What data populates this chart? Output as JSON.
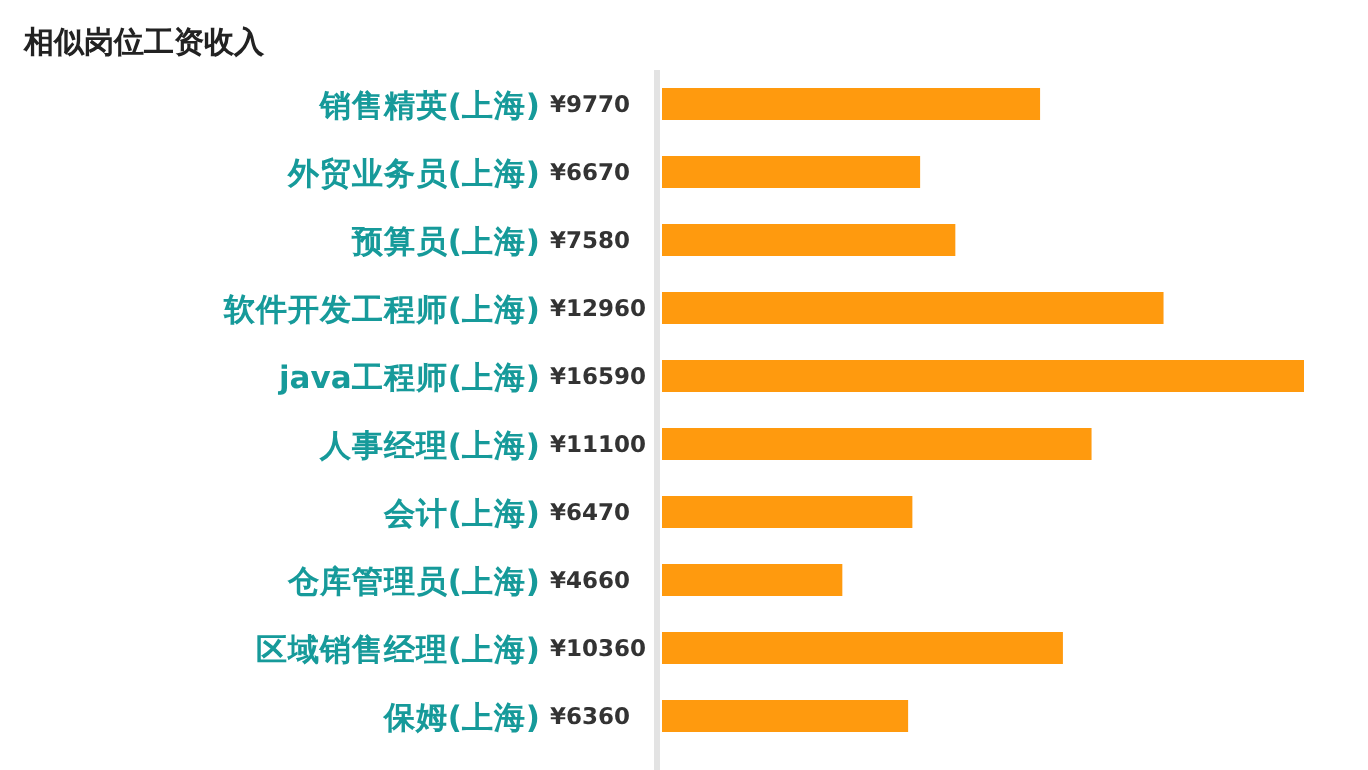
{
  "chart_data": {
    "type": "bar",
    "orientation": "horizontal",
    "title": "相似岗位工资收入",
    "categories": [
      "销售精英(上海)",
      "外贸业务员(上海)",
      "预算员(上海)",
      "软件开发工程师(上海)",
      "java工程师(上海)",
      "人事经理(上海)",
      "会计(上海)",
      "仓库管理员(上海)",
      "区域销售经理(上海)",
      "保姆(上海)"
    ],
    "values": [
      9770,
      6670,
      7580,
      12960,
      16590,
      11100,
      6470,
      4660,
      10360,
      6360
    ],
    "value_labels": [
      "¥9770",
      "¥6670",
      "¥7580",
      "¥12960",
      "¥16590",
      "¥11100",
      "¥6470",
      "¥4660",
      "¥10360",
      "¥6360"
    ],
    "color": "#ff9a0e"
  }
}
